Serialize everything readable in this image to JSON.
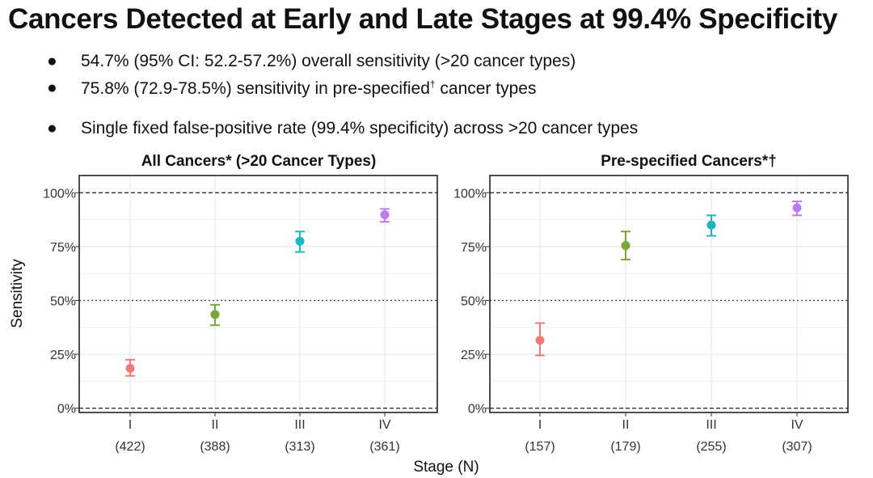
{
  "title": "Cancers Detected at Early and Late Stages at 99.4% Specificity",
  "bullets": [
    {
      "text": "54.7% (95% CI: 52.2-57.2%) overall sensitivity (>20 cancer types)"
    },
    {
      "text_before": "75.8% (72.9-78.5%) sensitivity in pre-specified",
      "superscript": "†",
      "text_after": " cancer types"
    },
    {
      "text": "Single fixed false-positive rate (99.4% specificity) across >20 cancer types"
    }
  ],
  "colors": {
    "stage_I": "#f07a7a",
    "stage_II": "#7aa63a",
    "stage_III": "#1ab8c4",
    "stage_IV": "#c07af0"
  },
  "chart_data": [
    {
      "type": "scatter",
      "title": "All Cancers* (>20 Cancer Types)",
      "ylabel": "Sensitivity",
      "xlabel": "Stage (N)",
      "categories": [
        "I",
        "II",
        "III",
        "IV"
      ],
      "counts": [
        "(422)",
        "(388)",
        "(313)",
        "(361)"
      ],
      "values": [
        18.5,
        43.5,
        77.5,
        89.8
      ],
      "ci_low": [
        15,
        38.5,
        72.5,
        86.5
      ],
      "ci_high": [
        22.5,
        48,
        82,
        92.5
      ],
      "yticks": [
        "0%",
        "25%",
        "50%",
        "75%",
        "100%"
      ],
      "ylim": [
        -2,
        108
      ],
      "reference_lines": [
        0,
        50,
        100
      ],
      "grid": true,
      "legend": "none"
    },
    {
      "type": "scatter",
      "title": "Pre-specified Cancers*†",
      "ylabel": "",
      "xlabel": "Stage (N)",
      "categories": [
        "I",
        "II",
        "III",
        "IV"
      ],
      "counts": [
        "(157)",
        "(179)",
        "(255)",
        "(307)"
      ],
      "values": [
        31.5,
        75.5,
        85,
        93
      ],
      "ci_low": [
        24.5,
        69,
        80,
        89.5
      ],
      "ci_high": [
        39.5,
        82,
        89.5,
        96
      ],
      "yticks": [
        "0%",
        "25%",
        "50%",
        "75%",
        "100%"
      ],
      "ylim": [
        -2,
        108
      ],
      "reference_lines": [
        0,
        50,
        100
      ],
      "grid": true,
      "legend": "none"
    }
  ]
}
